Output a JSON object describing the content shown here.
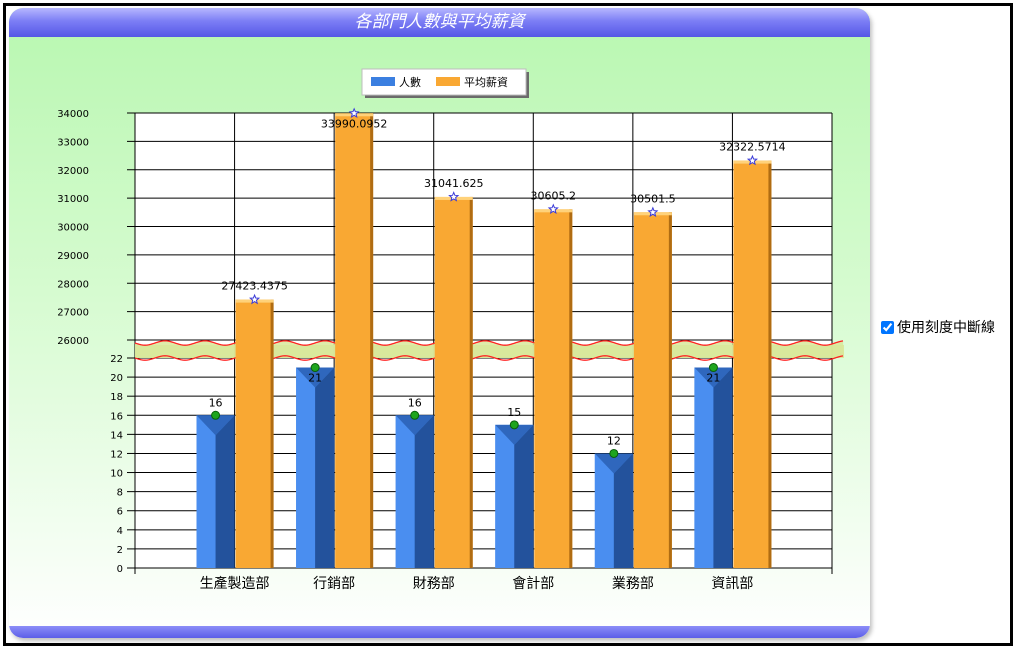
{
  "title": "各部門人數與平均薪資",
  "option_label": "使用刻度中斷線",
  "option_checked": true,
  "colors": {
    "count": "#3b7fe0",
    "count_dark": "#23529c",
    "salary": "#f9a833",
    "salary_dark": "#b06c12",
    "break_line": "#ff2222",
    "break_band": "#d8e79a"
  },
  "chart_data": {
    "type": "bar",
    "title": "各部門人數與平均薪資",
    "categories": [
      "生產製造部",
      "行銷部",
      "財務部",
      "會計部",
      "業務部",
      "資訊部"
    ],
    "series": [
      {
        "name": "人數",
        "values": [
          16,
          21,
          16,
          15,
          12,
          21
        ],
        "labels": [
          "16",
          "21",
          "16",
          "15",
          "12",
          "21"
        ]
      },
      {
        "name": "平均薪資",
        "values": [
          27423.4375,
          33990.0952,
          31041.625,
          30605.2,
          30501.5,
          32322.5714
        ],
        "labels": [
          "27423.4375",
          "33990.0952",
          "31041.625",
          "30605.2",
          "30501.5",
          "32322.5714"
        ]
      }
    ],
    "axis_break": true,
    "y_lower": {
      "range": [
        0,
        22
      ],
      "ticks": [
        "0",
        "2",
        "4",
        "6",
        "8",
        "10",
        "12",
        "14",
        "16",
        "18",
        "20",
        "22"
      ]
    },
    "y_upper": {
      "range": [
        26000,
        34000
      ],
      "ticks": [
        "26000",
        "27000",
        "28000",
        "29000",
        "30000",
        "31000",
        "32000",
        "33000",
        "34000"
      ]
    },
    "grid": true,
    "legend_position": "top-center"
  }
}
